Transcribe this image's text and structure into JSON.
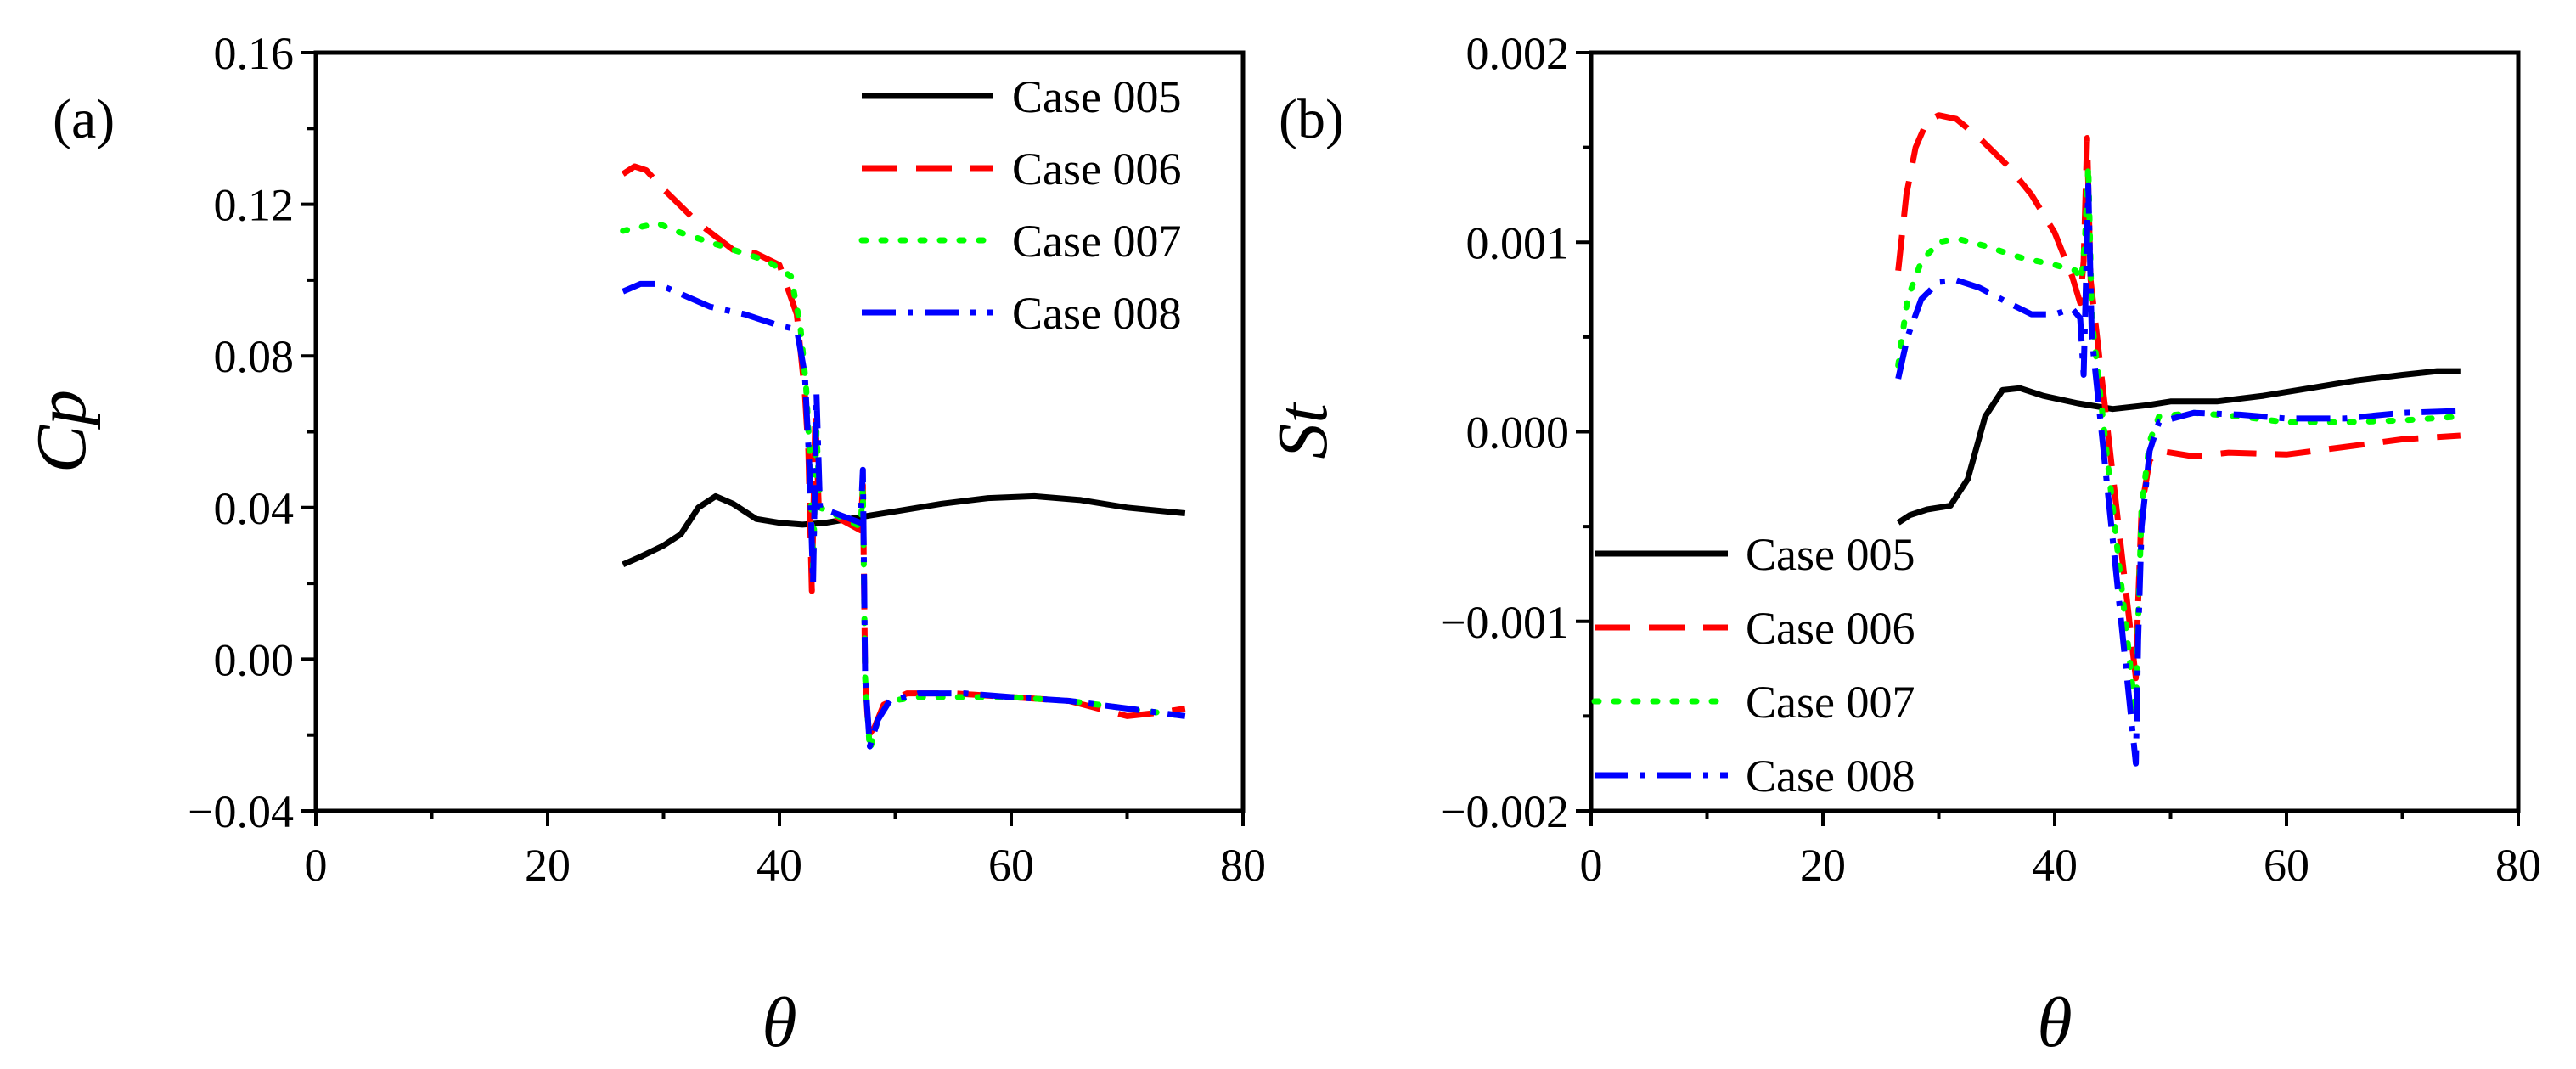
{
  "chart_data": [
    {
      "type": "line",
      "panel_label": "(a)",
      "xlabel": "θ",
      "ylabel": "Cp",
      "xlim": [
        0,
        80
      ],
      "ylim": [
        -0.04,
        0.16
      ],
      "xticks": [
        0,
        20,
        40,
        60,
        80
      ],
      "xtick_labels": [
        "0",
        "20",
        "40",
        "60",
        "80"
      ],
      "yticks": [
        -0.04,
        0,
        0.04,
        0.08,
        0.12,
        0.16
      ],
      "ytick_labels": [
        "−0.04",
        "0.00",
        "0.04",
        "0.08",
        "0.12",
        "0.16"
      ],
      "legend_position": "top-right",
      "series": [
        {
          "name": "Case 005",
          "color": "#000000",
          "style": "solid",
          "points": [
            [
              26.5,
              0.025
            ],
            [
              28,
              0.027
            ],
            [
              30,
              0.03
            ],
            [
              31.5,
              0.033
            ],
            [
              33,
              0.04
            ],
            [
              34.5,
              0.043
            ],
            [
              36,
              0.041
            ],
            [
              38,
              0.037
            ],
            [
              40,
              0.036
            ],
            [
              42,
              0.0355
            ],
            [
              44,
              0.036
            ],
            [
              46,
              0.037
            ],
            [
              48,
              0.038
            ],
            [
              50,
              0.039
            ],
            [
              54,
              0.041
            ],
            [
              58,
              0.0425
            ],
            [
              62,
              0.043
            ],
            [
              66,
              0.042
            ],
            [
              70,
              0.04
            ],
            [
              75,
              0.0385
            ]
          ]
        },
        {
          "name": "Case 006",
          "color": "#ff0000",
          "style": "dashed",
          "points": [
            [
              26.5,
              0.128
            ],
            [
              27.5,
              0.13
            ],
            [
              28.5,
              0.129
            ],
            [
              30,
              0.124
            ],
            [
              33,
              0.115
            ],
            [
              36,
              0.108
            ],
            [
              38,
              0.107
            ],
            [
              40,
              0.104
            ],
            [
              41.5,
              0.091
            ],
            [
              42.2,
              0.07
            ],
            [
              42.5,
              0.055
            ],
            [
              42.8,
              0.018
            ],
            [
              43.1,
              0.065
            ],
            [
              43.4,
              0.04
            ],
            [
              47,
              0.034
            ],
            [
              47.2,
              0.046
            ],
            [
              47.4,
              -0.005
            ],
            [
              47.7,
              -0.02
            ],
            [
              48.2,
              -0.018
            ],
            [
              49,
              -0.012
            ],
            [
              51,
              -0.009
            ],
            [
              55,
              -0.009
            ],
            [
              60,
              -0.01
            ],
            [
              65,
              -0.011
            ],
            [
              70,
              -0.015
            ],
            [
              73,
              -0.014
            ],
            [
              75,
              -0.013
            ]
          ]
        },
        {
          "name": "Case 007",
          "color": "#00ff00",
          "style": "dotted",
          "points": [
            [
              26.5,
              0.113
            ],
            [
              28,
              0.114
            ],
            [
              29.5,
              0.115
            ],
            [
              31,
              0.113
            ],
            [
              34,
              0.11
            ],
            [
              37,
              0.107
            ],
            [
              39,
              0.105
            ],
            [
              41,
              0.101
            ],
            [
              41.8,
              0.088
            ],
            [
              42.3,
              0.072
            ],
            [
              42.6,
              0.055
            ],
            [
              42.9,
              0.024
            ],
            [
              43.2,
              0.06
            ],
            [
              43.5,
              0.04
            ],
            [
              47,
              0.035
            ],
            [
              47.2,
              0.045
            ],
            [
              47.4,
              -0.005
            ],
            [
              47.8,
              -0.024
            ],
            [
              48.5,
              -0.016
            ],
            [
              49.5,
              -0.011
            ],
            [
              52,
              -0.01
            ],
            [
              56,
              -0.01
            ],
            [
              60,
              -0.01
            ],
            [
              65,
              -0.011
            ],
            [
              70,
              -0.013
            ],
            [
              75,
              -0.015
            ]
          ]
        },
        {
          "name": "Case 008",
          "color": "#0000ff",
          "style": "dashdot",
          "points": [
            [
              26.5,
              0.097
            ],
            [
              28,
              0.099
            ],
            [
              29.5,
              0.099
            ],
            [
              31,
              0.097
            ],
            [
              34,
              0.093
            ],
            [
              37,
              0.091
            ],
            [
              40,
              0.088
            ],
            [
              41.5,
              0.087
            ],
            [
              42.2,
              0.075
            ],
            [
              42.6,
              0.05
            ],
            [
              42.9,
              0.02
            ],
            [
              43.2,
              0.07
            ],
            [
              43.5,
              0.04
            ],
            [
              47,
              0.036
            ],
            [
              47.2,
              0.05
            ],
            [
              47.4,
              -0.005
            ],
            [
              47.8,
              -0.023
            ],
            [
              48.5,
              -0.016
            ],
            [
              49.5,
              -0.011
            ],
            [
              52,
              -0.009
            ],
            [
              56,
              -0.009
            ],
            [
              60,
              -0.01
            ],
            [
              65,
              -0.011
            ],
            [
              70,
              -0.013
            ],
            [
              75,
              -0.015
            ]
          ]
        }
      ]
    },
    {
      "type": "line",
      "panel_label": "(b)",
      "xlabel": "θ",
      "ylabel": "St",
      "xlim": [
        0,
        80
      ],
      "ylim": [
        -0.002,
        0.002
      ],
      "xticks": [
        0,
        20,
        40,
        60,
        80
      ],
      "xtick_labels": [
        "0",
        "20",
        "40",
        "60",
        "80"
      ],
      "yticks": [
        -0.002,
        -0.001,
        0,
        0.001,
        0.002
      ],
      "ytick_labels": [
        "−0.002",
        "−0.001",
        "0.000",
        "0.001",
        "0.002"
      ],
      "legend_position": "bottom-left",
      "series": [
        {
          "name": "Case 005",
          "color": "#000000",
          "style": "solid",
          "points": [
            [
              26.5,
              -0.00048
            ],
            [
              27.5,
              -0.00044
            ],
            [
              29,
              -0.00041
            ],
            [
              31,
              -0.00039
            ],
            [
              32.5,
              -0.00025
            ],
            [
              34,
              8e-05
            ],
            [
              35.5,
              0.00022
            ],
            [
              37,
              0.00023
            ],
            [
              39,
              0.00019
            ],
            [
              42,
              0.00015
            ],
            [
              45,
              0.00012
            ],
            [
              48,
              0.00014
            ],
            [
              50,
              0.00016
            ],
            [
              54,
              0.00016
            ],
            [
              58,
              0.00019
            ],
            [
              62,
              0.00023
            ],
            [
              66,
              0.00027
            ],
            [
              70,
              0.0003
            ],
            [
              73,
              0.00032
            ],
            [
              75,
              0.00032
            ]
          ]
        },
        {
          "name": "Case 006",
          "color": "#ff0000",
          "style": "dashed",
          "points": [
            [
              26.5,
              0.00085
            ],
            [
              27.2,
              0.00125
            ],
            [
              28,
              0.0015
            ],
            [
              29,
              0.00164
            ],
            [
              30,
              0.00167
            ],
            [
              31.5,
              0.00165
            ],
            [
              33.5,
              0.00155
            ],
            [
              36,
              0.0014
            ],
            [
              38,
              0.00125
            ],
            [
              40,
              0.00105
            ],
            [
              41.5,
              0.00082
            ],
            [
              42.2,
              0.00068
            ],
            [
              42.5,
              0.0009
            ],
            [
              42.8,
              0.00155
            ],
            [
              43.1,
              0.0008
            ],
            [
              47,
              -0.0013
            ],
            [
              47.2,
              -0.0009
            ],
            [
              47.5,
              -0.0004
            ],
            [
              48.2,
              -0.00015
            ],
            [
              49,
              -0.0001
            ],
            [
              52,
              -0.00013
            ],
            [
              55,
              -0.00011
            ],
            [
              60,
              -0.00012
            ],
            [
              65,
              -8e-05
            ],
            [
              70,
              -4e-05
            ],
            [
              75,
              -2e-05
            ]
          ]
        },
        {
          "name": "Case 007",
          "color": "#00ff00",
          "style": "dotted",
          "points": [
            [
              26.5,
              0.00035
            ],
            [
              27.3,
              0.0007
            ],
            [
              28.5,
              0.0009
            ],
            [
              30,
              0.001
            ],
            [
              31.5,
              0.00102
            ],
            [
              34,
              0.00098
            ],
            [
              37,
              0.00092
            ],
            [
              40,
              0.00088
            ],
            [
              41.8,
              0.00085
            ],
            [
              42.3,
              0.0008
            ],
            [
              42.6,
              0.001
            ],
            [
              42.9,
              0.0014
            ],
            [
              43.2,
              0.0006
            ],
            [
              47,
              -0.0015
            ],
            [
              47.2,
              -0.001
            ],
            [
              47.5,
              -0.0004
            ],
            [
              48.2,
              -5e-05
            ],
            [
              49,
              8e-05
            ],
            [
              52,
              0.0001
            ],
            [
              56,
              8e-05
            ],
            [
              60,
              5e-05
            ],
            [
              65,
              5e-05
            ],
            [
              70,
              6e-05
            ],
            [
              75,
              8e-05
            ]
          ]
        },
        {
          "name": "Case 008",
          "color": "#0000ff",
          "style": "dashdot",
          "points": [
            [
              26.5,
              0.00028
            ],
            [
              27.3,
              0.0005
            ],
            [
              28.5,
              0.0007
            ],
            [
              30,
              0.00079
            ],
            [
              31.5,
              0.0008
            ],
            [
              33.5,
              0.00076
            ],
            [
              36,
              0.00068
            ],
            [
              38,
              0.00062
            ],
            [
              40,
              0.00062
            ],
            [
              41.5,
              0.00065
            ],
            [
              42.2,
              0.0006
            ],
            [
              42.5,
              0.0003
            ],
            [
              42.7,
              0.0008
            ],
            [
              42.9,
              0.0013
            ],
            [
              43.2,
              0.0005
            ],
            [
              47,
              -0.00175
            ],
            [
              47.2,
              -0.0011
            ],
            [
              47.5,
              -0.0005
            ],
            [
              48.2,
              -0.0001
            ],
            [
              49,
              5e-05
            ],
            [
              52,
              0.0001
            ],
            [
              56,
              9e-05
            ],
            [
              60,
              7e-05
            ],
            [
              65,
              7e-05
            ],
            [
              70,
              0.0001
            ],
            [
              75,
              0.00011
            ]
          ]
        }
      ]
    }
  ]
}
